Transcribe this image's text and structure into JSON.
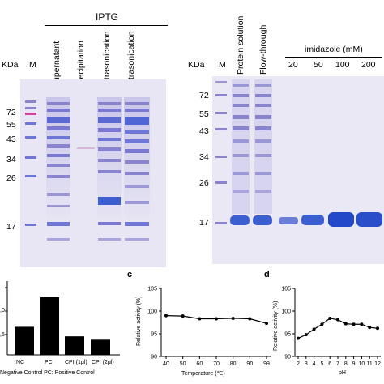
{
  "gel_left": {
    "group_label": "IPTG",
    "unit_label": "KDa",
    "marker_label": "M",
    "lanes": [
      "Supernatant",
      "Precipitation",
      "Ultrasonication",
      "Ultrasonication"
    ],
    "mw_labels": [
      "72",
      "55",
      "43",
      "34",
      "26",
      "17"
    ]
  },
  "gel_right": {
    "unit_label": "KDa",
    "marker_label": "M",
    "lanes": [
      "Protein solution",
      "Flow-through"
    ],
    "imidazole_label": "imidazole (mM)",
    "imidazole_values": [
      "20",
      "50",
      "100",
      "200"
    ],
    "mw_labels": [
      "72",
      "55",
      "43",
      "34",
      "26",
      "17"
    ]
  },
  "bar_panel": {
    "categories": [
      "NC",
      "PC",
      "CPI (1μl)",
      "CPI (2μl)"
    ],
    "values": [
      0.5,
      1.03,
      0.33,
      0.27
    ],
    "ytick_labels": [
      ",0",
      ",5"
    ],
    "star_labels": [
      "***",
      "",
      "***",
      "***"
    ],
    "legend_line": "Negative Control   PC: Positive Control"
  },
  "chart_data": [
    {
      "type": "bar",
      "categories": [
        "NC",
        "PC",
        "CPI (1μl)",
        "CPI (2μl)"
      ],
      "values": [
        0.5,
        1.03,
        0.33,
        0.27
      ],
      "ylim": [
        0,
        1.2
      ]
    },
    {
      "type": "line",
      "panel_letter": "c",
      "x": [
        40,
        50,
        60,
        70,
        80,
        90,
        99
      ],
      "y": [
        99,
        98.9,
        98.3,
        98.3,
        98.4,
        98.3,
        97.3
      ],
      "xlabel": "Temperature (℃)",
      "ylabel": "Relative activity (%)",
      "ylim": [
        90,
        105
      ],
      "yticks": [
        "90",
        "95",
        "100",
        "105"
      ],
      "xticks": [
        "40",
        "50",
        "60",
        "70",
        "80",
        "90",
        "99"
      ]
    },
    {
      "type": "line",
      "panel_letter": "d",
      "x": [
        2,
        3,
        4,
        5,
        6,
        7,
        8,
        9,
        10,
        11,
        12
      ],
      "y": [
        94,
        94.8,
        96,
        97.1,
        98.4,
        98.1,
        97.2,
        97.1,
        97.1,
        96.4,
        96.2
      ],
      "xlabel": "pH",
      "ylabel": "Relative activity (%)",
      "ylim": [
        90,
        105
      ],
      "yticks": [
        "90",
        "95",
        "100",
        "105"
      ],
      "xticks": [
        "2",
        "3",
        "4",
        "5",
        "6",
        "7",
        "8",
        "9",
        "10",
        "11",
        "12"
      ]
    }
  ],
  "colors": {
    "gel_bg": "#e7e6f4",
    "band": "#3b5fd0",
    "band_light": "#8a84cf",
    "marker_pink": "#d8449a"
  }
}
